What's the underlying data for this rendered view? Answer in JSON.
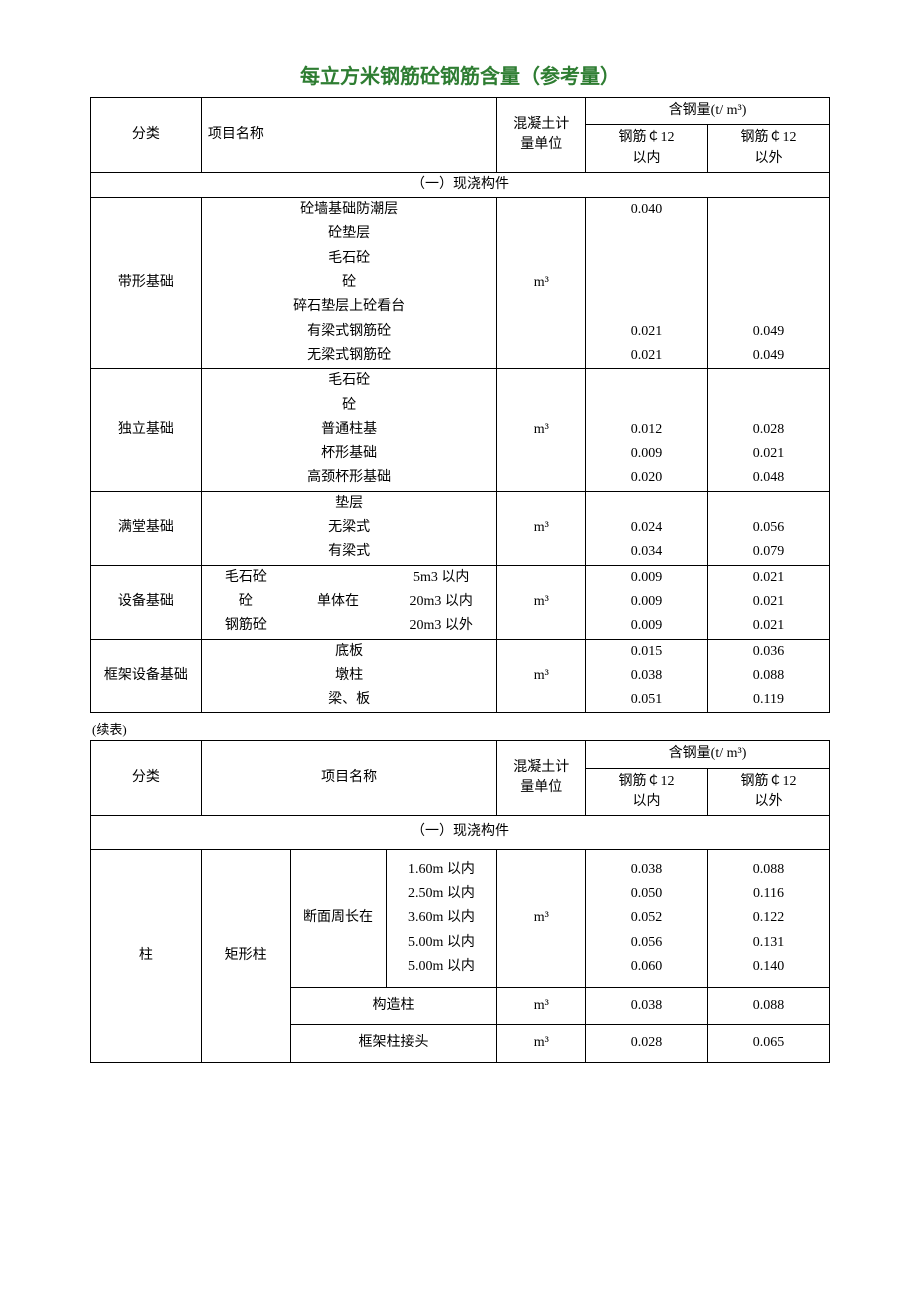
{
  "title_text": "每立方米钢筋砼钢筋含量（参考量）",
  "title_color": "#2e7d32",
  "cont_label": "(续表)",
  "header": {
    "category": "分类",
    "item_name": "项目名称",
    "unit_label": "混凝土计\n量单位",
    "steel_header": "含钢量(t/ m³)",
    "rebar_in": "钢筋￠12\n以内",
    "rebar_out": "钢筋￠12\n以外"
  },
  "section1_title": "（一）现浇构件",
  "unit_m3": "m³",
  "groupA": {
    "name": "带形基础",
    "rows": [
      {
        "item": "砼墙基础防潮层",
        "in": "0.040",
        "out": ""
      },
      {
        "item": "砼垫层",
        "in": "",
        "out": ""
      },
      {
        "item": "毛石砼",
        "in": "",
        "out": ""
      },
      {
        "item": "砼",
        "in": "",
        "out": ""
      },
      {
        "item": "碎石垫层上砼看台",
        "in": "",
        "out": ""
      },
      {
        "item": "有梁式钢筋砼",
        "in": "0.021",
        "out": "0.049"
      },
      {
        "item": "无梁式钢筋砼",
        "in": "0.021",
        "out": "0.049"
      }
    ]
  },
  "groupB": {
    "name": "独立基础",
    "rows": [
      {
        "item": "毛石砼",
        "in": "",
        "out": ""
      },
      {
        "item": "砼",
        "in": "",
        "out": ""
      },
      {
        "item": "普通柱基",
        "in": "0.012",
        "out": "0.028"
      },
      {
        "item": "杯形基础",
        "in": "0.009",
        "out": "0.021"
      },
      {
        "item": "高颈杯形基础",
        "in": "0.020",
        "out": "0.048"
      }
    ]
  },
  "groupC": {
    "name": "满堂基础",
    "rows": [
      {
        "item": "垫层",
        "in": "",
        "out": ""
      },
      {
        "item": "无梁式",
        "in": "0.024",
        "out": "0.056"
      },
      {
        "item": "有梁式",
        "in": "0.034",
        "out": "0.079"
      }
    ]
  },
  "groupD": {
    "name": "设备基础",
    "col1": [
      "毛石砼",
      "砼",
      "钢筋砼"
    ],
    "col2": "单体在",
    "col3": [
      "5m3 以内",
      "20m3 以内",
      "20m3 以外"
    ],
    "vals": [
      {
        "in": "0.009",
        "out": "0.021"
      },
      {
        "in": "0.009",
        "out": "0.021"
      },
      {
        "in": "0.009",
        "out": "0.021"
      }
    ]
  },
  "groupE": {
    "name": "框架设备基础",
    "rows": [
      {
        "item": "底板",
        "in": "0.015",
        "out": "0.036"
      },
      {
        "item": "墩柱",
        "in": "0.038",
        "out": "0.088"
      },
      {
        "item": "梁、板",
        "in": "0.051",
        "out": "0.119"
      }
    ]
  },
  "groupF": {
    "name": "柱",
    "sub1": "矩形柱",
    "sub2a": "断面周长在",
    "sizes": [
      "1.60m 以内",
      "2.50m 以内",
      "3.60m 以内",
      "5.00m 以内",
      "5.00m 以内"
    ],
    "vals": [
      {
        "in": "0.038",
        "out": "0.088"
      },
      {
        "in": "0.050",
        "out": "0.116"
      },
      {
        "in": "0.052",
        "out": "0.122"
      },
      {
        "in": "0.056",
        "out": "0.131"
      },
      {
        "in": "0.060",
        "out": "0.140"
      }
    ],
    "row6": {
      "label": "构造柱",
      "in": "0.038",
      "out": "0.088"
    },
    "row7": {
      "label": "框架柱接头",
      "in": "0.028",
      "out": "0.065"
    }
  },
  "colwidths": {
    "c1": "15%",
    "c2": "12%",
    "c3": "13%",
    "c4": "15%",
    "c5": "12%",
    "c6": "16.5%",
    "c7": "16.5%"
  }
}
